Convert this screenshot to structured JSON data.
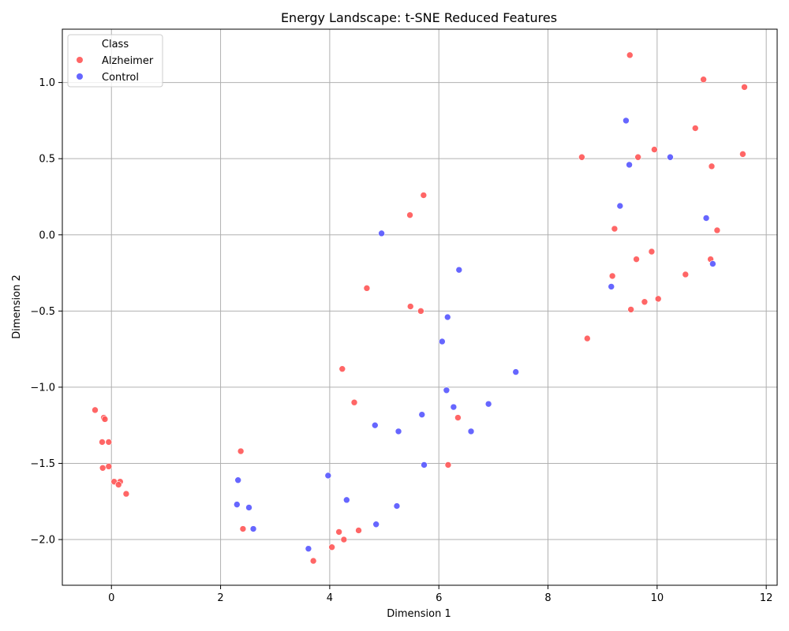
{
  "chart_data": {
    "type": "scatter",
    "title": "Energy Landscape: t-SNE Reduced Features",
    "xlabel": "Dimension 1",
    "ylabel": "Dimension 2",
    "xlim": [
      -0.9,
      12.2
    ],
    "ylim": [
      -2.3,
      1.35
    ],
    "x_ticks": [
      0,
      2,
      4,
      6,
      8,
      10,
      12
    ],
    "y_ticks": [
      -2.0,
      -1.5,
      -1.0,
      -0.5,
      0.0,
      0.5,
      1.0
    ],
    "x_tick_labels": [
      "0",
      "2",
      "4",
      "6",
      "8",
      "10",
      "12"
    ],
    "y_tick_labels": [
      "−2.0",
      "−1.5",
      "−1.0",
      "−0.5",
      "0.0",
      "0.5",
      "1.0"
    ],
    "grid": true,
    "legend": {
      "title": "Class",
      "placement": "top-left"
    },
    "series": [
      {
        "name": "Alzheimer",
        "color": "#ff5555",
        "points": [
          [
            9.5,
            1.18
          ],
          [
            10.85,
            1.02
          ],
          [
            11.6,
            0.97
          ],
          [
            10.7,
            0.7
          ],
          [
            9.95,
            0.56
          ],
          [
            8.62,
            0.51
          ],
          [
            9.65,
            0.51
          ],
          [
            11.0,
            0.45
          ],
          [
            11.57,
            0.53
          ],
          [
            5.72,
            0.26
          ],
          [
            5.47,
            0.13
          ],
          [
            9.22,
            0.04
          ],
          [
            11.1,
            0.03
          ],
          [
            9.9,
            -0.11
          ],
          [
            9.62,
            -0.16
          ],
          [
            10.98,
            -0.16
          ],
          [
            9.18,
            -0.27
          ],
          [
            10.52,
            -0.26
          ],
          [
            4.68,
            -0.35
          ],
          [
            10.02,
            -0.42
          ],
          [
            9.77,
            -0.44
          ],
          [
            5.48,
            -0.47
          ],
          [
            5.67,
            -0.5
          ],
          [
            9.52,
            -0.49
          ],
          [
            8.72,
            -0.68
          ],
          [
            4.23,
            -0.88
          ],
          [
            4.45,
            -1.1
          ],
          [
            -0.3,
            -1.15
          ],
          [
            -0.14,
            -1.2
          ],
          [
            -0.12,
            -1.21
          ],
          [
            6.35,
            -1.2
          ],
          [
            -0.17,
            -1.36
          ],
          [
            -0.05,
            -1.36
          ],
          [
            2.37,
            -1.42
          ],
          [
            6.17,
            -1.51
          ],
          [
            -0.05,
            -1.52
          ],
          [
            -0.16,
            -1.53
          ],
          [
            0.05,
            -1.62
          ],
          [
            0.16,
            -1.62
          ],
          [
            0.13,
            -1.64
          ],
          [
            0.27,
            -1.7
          ],
          [
            4.17,
            -1.95
          ],
          [
            2.41,
            -1.93
          ],
          [
            4.53,
            -1.94
          ],
          [
            4.26,
            -2.0
          ],
          [
            4.04,
            -2.05
          ],
          [
            3.7,
            -2.14
          ]
        ]
      },
      {
        "name": "Control",
        "color": "#5555ff",
        "points": [
          [
            9.43,
            0.75
          ],
          [
            10.24,
            0.51
          ],
          [
            9.49,
            0.46
          ],
          [
            9.32,
            0.19
          ],
          [
            10.9,
            0.11
          ],
          [
            4.95,
            0.01
          ],
          [
            11.02,
            -0.19
          ],
          [
            6.37,
            -0.23
          ],
          [
            9.16,
            -0.34
          ],
          [
            6.16,
            -0.54
          ],
          [
            6.06,
            -0.7
          ],
          [
            7.41,
            -0.9
          ],
          [
            6.14,
            -1.02
          ],
          [
            6.27,
            -1.13
          ],
          [
            6.91,
            -1.11
          ],
          [
            5.69,
            -1.18
          ],
          [
            4.83,
            -1.25
          ],
          [
            5.26,
            -1.29
          ],
          [
            6.59,
            -1.29
          ],
          [
            5.73,
            -1.51
          ],
          [
            3.97,
            -1.58
          ],
          [
            2.32,
            -1.61
          ],
          [
            4.31,
            -1.74
          ],
          [
            2.3,
            -1.77
          ],
          [
            2.52,
            -1.79
          ],
          [
            5.23,
            -1.78
          ],
          [
            2.6,
            -1.93
          ],
          [
            4.85,
            -1.9
          ],
          [
            3.61,
            -2.06
          ]
        ]
      }
    ]
  }
}
